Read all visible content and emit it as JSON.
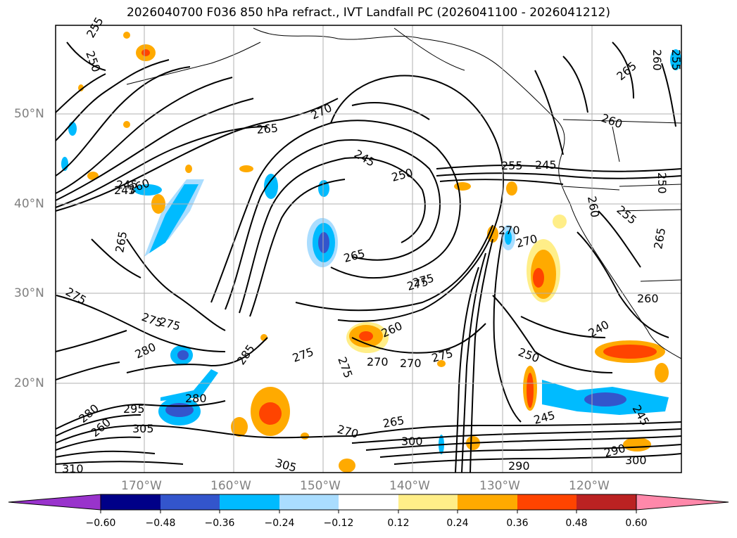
{
  "title": "2026040700 F036 850 hPa refract., IVT Landfall PC (2026041100 - 2026041212)",
  "lat_labels": [
    "50°N",
    "40°N",
    "30°N",
    "20°N"
  ],
  "lon_labels": [
    "170°W",
    "160°W",
    "150°W",
    "140°W",
    "130°W",
    "120°W"
  ],
  "colorbar": {
    "ticks": [
      "−0.60",
      "−0.48",
      "−0.36",
      "−0.24",
      "−0.12",
      "0.12",
      "0.24",
      "0.36",
      "0.48",
      "0.60"
    ],
    "colors": [
      "#9933cc",
      "#000088",
      "#3355cc",
      "#00bbff",
      "#aaddff",
      "#ffffff",
      "#ffee88",
      "#ffaa00",
      "#ff4400",
      "#bb2222",
      "#ff88aa"
    ]
  },
  "contour_labels": [
    "255",
    "250",
    "265",
    "270",
    "260",
    "245",
    "250",
    "255",
    "245",
    "270",
    "265",
    "260",
    "245",
    "260",
    "265",
    "275",
    "275",
    "265",
    "275",
    "280",
    "285",
    "275",
    "275",
    "275",
    "270",
    "260",
    "270",
    "280",
    "295",
    "305",
    "270",
    "265",
    "300",
    "305",
    "310",
    "290",
    "250",
    "245",
    "240",
    "245",
    "275",
    "270",
    "255",
    "260",
    "250",
    "265",
    "260",
    "255",
    "245",
    "280",
    "300",
    "290",
    "275",
    "260"
  ]
}
